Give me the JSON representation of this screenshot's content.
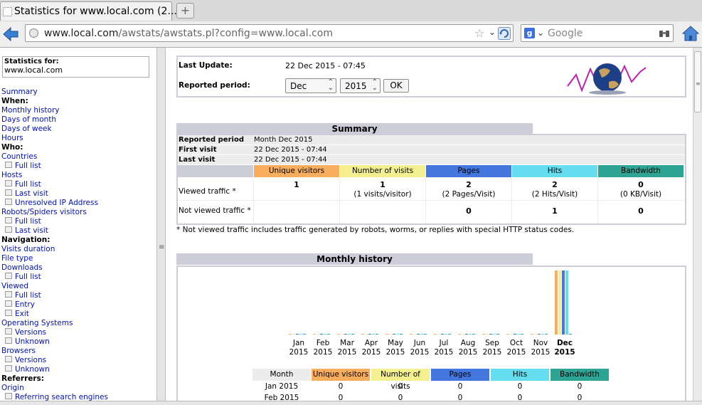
{
  "browser": {
    "tab_title": "Statistics for www.local.com (2...",
    "url_host": "www.local.com",
    "url_path": "/awstats/awstats.pl?config=www.local.com",
    "search_placeholder": "Google",
    "search_engine_letter": "g"
  },
  "sidebar": {
    "stats_for_label": "Statistics for:",
    "site": "www.local.com",
    "menu": [
      {
        "label": "Summary",
        "type": "link"
      },
      {
        "label": "When:",
        "type": "head"
      },
      {
        "label": "Monthly history",
        "type": "link"
      },
      {
        "label": "Days of month",
        "type": "link"
      },
      {
        "label": "Days of week",
        "type": "link"
      },
      {
        "label": "Hours",
        "type": "link"
      },
      {
        "label": "Who:",
        "type": "head"
      },
      {
        "label": "Countries",
        "type": "link"
      },
      {
        "label": "Full list",
        "type": "sub"
      },
      {
        "label": "Hosts",
        "type": "link"
      },
      {
        "label": "Full list",
        "type": "sub"
      },
      {
        "label": "Last visit",
        "type": "sub"
      },
      {
        "label": "Unresolved IP Address",
        "type": "sub"
      },
      {
        "label": "Robots/Spiders visitors",
        "type": "link"
      },
      {
        "label": "Full list",
        "type": "sub"
      },
      {
        "label": "Last visit",
        "type": "sub"
      },
      {
        "label": "Navigation:",
        "type": "head"
      },
      {
        "label": "Visits duration",
        "type": "link"
      },
      {
        "label": "File type",
        "type": "link"
      },
      {
        "label": "Downloads",
        "type": "link"
      },
      {
        "label": "Full list",
        "type": "sub"
      },
      {
        "label": "Viewed",
        "type": "link"
      },
      {
        "label": "Full list",
        "type": "sub"
      },
      {
        "label": "Entry",
        "type": "sub"
      },
      {
        "label": "Exit",
        "type": "sub"
      },
      {
        "label": "Operating Systems",
        "type": "link"
      },
      {
        "label": "Versions",
        "type": "sub"
      },
      {
        "label": "Unknown",
        "type": "sub"
      },
      {
        "label": "Browsers",
        "type": "link"
      },
      {
        "label": "Versions",
        "type": "sub"
      },
      {
        "label": "Unknown",
        "type": "sub"
      },
      {
        "label": "Referrers:",
        "type": "head"
      },
      {
        "label": "Origin",
        "type": "link"
      },
      {
        "label": "Referring search engines",
        "type": "sub"
      }
    ]
  },
  "header": {
    "last_update_label": "Last Update:",
    "last_update_value": "22 Dec 2015 - 07:45",
    "period_label": "Reported period:",
    "month_selected": "Dec",
    "year_selected": "2015",
    "ok_label": "OK"
  },
  "summary": {
    "title": "Summary",
    "rows": [
      {
        "k": "Reported period",
        "v": "Month Dec 2015"
      },
      {
        "k": "First visit",
        "v": "22 Dec 2015 - 07:44"
      },
      {
        "k": "Last visit",
        "v": "22 Dec 2015 - 07:44"
      }
    ],
    "columns": [
      "Unique visitors",
      "Number of visits",
      "Pages",
      "Hits",
      "Bandwidth"
    ],
    "viewed_label": "Viewed traffic *",
    "viewed": [
      {
        "main": "1",
        "sub": ""
      },
      {
        "main": "1",
        "sub": "(1 visits/visitor)"
      },
      {
        "main": "2",
        "sub": "(2 Pages/Visit)"
      },
      {
        "main": "2",
        "sub": "(2 Hits/Visit)"
      },
      {
        "main": "0",
        "sub": "(0 KB/Visit)"
      }
    ],
    "not_viewed_label": "Not viewed traffic *",
    "not_viewed": [
      "",
      "",
      "0",
      "1",
      "0"
    ],
    "note": "* Not viewed traffic includes traffic generated by robots, worms, or replies with special HTTP status codes."
  },
  "monthly": {
    "title": "Monthly history",
    "table_columns": [
      "Month",
      "Unique visitors",
      "Number of visits",
      "Pages",
      "Hits",
      "Bandwidth"
    ],
    "table_rows": [
      [
        "Jan 2015",
        "0",
        "0",
        "0",
        "0",
        "0"
      ],
      [
        "Feb 2015",
        "0",
        "0",
        "0",
        "0",
        "0"
      ]
    ]
  },
  "chart_data": {
    "type": "bar",
    "categories": [
      "Jan 2015",
      "Feb 2015",
      "Mar 2015",
      "Apr 2015",
      "May 2015",
      "Jun 2015",
      "Jul 2015",
      "Aug 2015",
      "Sep 2015",
      "Oct 2015",
      "Nov 2015",
      "Dec 2015"
    ],
    "month_labels": [
      "Jan",
      "Feb",
      "Mar",
      "Apr",
      "May",
      "Jun",
      "Jul",
      "Aug",
      "Sep",
      "Oct",
      "Nov",
      "Dec"
    ],
    "year_label": "2015",
    "current_index": 11,
    "series": [
      {
        "name": "Unique visitors",
        "color": "#f9ae5e",
        "values": [
          0,
          0,
          0,
          0,
          0,
          0,
          0,
          0,
          0,
          0,
          0,
          1
        ]
      },
      {
        "name": "Number of visits",
        "color": "#f4f090",
        "values": [
          0,
          0,
          0,
          0,
          0,
          0,
          0,
          0,
          0,
          0,
          0,
          1
        ]
      },
      {
        "name": "Pages",
        "color": "#4477dd",
        "values": [
          0,
          0,
          0,
          0,
          0,
          0,
          0,
          0,
          0,
          0,
          0,
          2
        ]
      },
      {
        "name": "Hits",
        "color": "#66ddee",
        "values": [
          0,
          0,
          0,
          0,
          0,
          0,
          0,
          0,
          0,
          0,
          0,
          2
        ]
      },
      {
        "name": "Bandwidth",
        "color": "#2ea495",
        "values": [
          0,
          0,
          0,
          0,
          0,
          0,
          0,
          0,
          0,
          0,
          0,
          0
        ]
      }
    ]
  },
  "colors": {
    "visitors": "#f9ae5e",
    "visits": "#f4f090",
    "pages": "#4477dd",
    "hits": "#66ddee",
    "bandwidth": "#2ea495",
    "frame_header": "#cccdd9",
    "link": "#0011bb"
  }
}
